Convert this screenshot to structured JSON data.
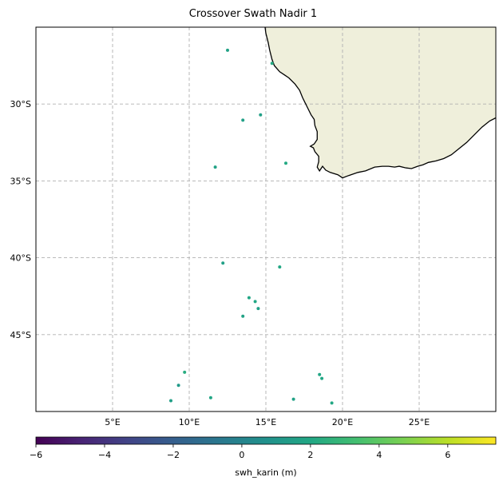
{
  "title": "Crossover Swath Nadir 1",
  "map": {
    "lon_range": [
      0,
      30
    ],
    "lat_range": [
      -50,
      -25
    ],
    "gridlines": true,
    "lon_ticks": [
      {
        "value": 5,
        "label": "5°E"
      },
      {
        "value": 10,
        "label": "10°E"
      },
      {
        "value": 15,
        "label": "15°E"
      },
      {
        "value": 20,
        "label": "20°E"
      },
      {
        "value": 25,
        "label": "25°E"
      }
    ],
    "lat_ticks": [
      {
        "value": -30,
        "label": "30°S"
      },
      {
        "value": -35,
        "label": "35°S"
      },
      {
        "value": -40,
        "label": "40°S"
      },
      {
        "value": -45,
        "label": "45°S"
      }
    ],
    "land_color": "#efefdb",
    "coast_color": "#000000",
    "grid_color": "#b0b0b0"
  },
  "coastline_lonlat": [
    [
      14.95,
      -25.0
    ],
    [
      15.0,
      -25.4
    ],
    [
      15.15,
      -26.0
    ],
    [
      15.25,
      -26.5
    ],
    [
      15.4,
      -27.1
    ],
    [
      15.55,
      -27.5
    ],
    [
      15.9,
      -27.9
    ],
    [
      16.2,
      -28.1
    ],
    [
      16.5,
      -28.3
    ],
    [
      16.9,
      -28.7
    ],
    [
      17.2,
      -29.1
    ],
    [
      17.4,
      -29.6
    ],
    [
      17.7,
      -30.2
    ],
    [
      17.95,
      -30.7
    ],
    [
      18.15,
      -31.0
    ],
    [
      18.2,
      -31.4
    ],
    [
      18.35,
      -31.8
    ],
    [
      18.35,
      -32.3
    ],
    [
      18.15,
      -32.6
    ],
    [
      17.9,
      -32.75
    ],
    [
      18.1,
      -32.85
    ],
    [
      18.2,
      -33.1
    ],
    [
      18.45,
      -33.4
    ],
    [
      18.45,
      -33.75
    ],
    [
      18.35,
      -34.1
    ],
    [
      18.5,
      -34.35
    ],
    [
      18.7,
      -34.05
    ],
    [
      18.9,
      -34.3
    ],
    [
      19.2,
      -34.45
    ],
    [
      19.7,
      -34.6
    ],
    [
      20.0,
      -34.8
    ],
    [
      20.4,
      -34.65
    ],
    [
      21.0,
      -34.45
    ],
    [
      21.5,
      -34.35
    ],
    [
      22.1,
      -34.1
    ],
    [
      22.6,
      -34.05
    ],
    [
      23.0,
      -34.05
    ],
    [
      23.4,
      -34.1
    ],
    [
      23.7,
      -34.05
    ],
    [
      24.1,
      -34.15
    ],
    [
      24.5,
      -34.2
    ],
    [
      24.9,
      -34.05
    ],
    [
      25.25,
      -33.95
    ],
    [
      25.6,
      -33.8
    ],
    [
      26.1,
      -33.7
    ],
    [
      26.6,
      -33.55
    ],
    [
      27.1,
      -33.3
    ],
    [
      27.6,
      -32.9
    ],
    [
      28.1,
      -32.5
    ],
    [
      28.6,
      -32.0
    ],
    [
      29.1,
      -31.5
    ],
    [
      29.6,
      -31.1
    ],
    [
      30.0,
      -30.9
    ]
  ],
  "points": [
    {
      "lon": 12.5,
      "lat": -26.5,
      "value": 1.7
    },
    {
      "lon": 15.4,
      "lat": -27.35,
      "value": 2.2
    },
    {
      "lon": 14.65,
      "lat": -30.7,
      "value": 1.6
    },
    {
      "lon": 13.5,
      "lat": -31.05,
      "value": 1.6
    },
    {
      "lon": 16.3,
      "lat": -33.85,
      "value": 2.1
    },
    {
      "lon": 11.7,
      "lat": -34.1,
      "value": 1.7
    },
    {
      "lon": 12.2,
      "lat": -40.35,
      "value": 1.6
    },
    {
      "lon": 15.9,
      "lat": -40.6,
      "value": 2.0
    },
    {
      "lon": 13.9,
      "lat": -42.6,
      "value": 1.9
    },
    {
      "lon": 14.3,
      "lat": -42.85,
      "value": 2.0
    },
    {
      "lon": 14.5,
      "lat": -43.3,
      "value": 1.6
    },
    {
      "lon": 13.5,
      "lat": -43.8,
      "value": 1.7
    },
    {
      "lon": 9.7,
      "lat": -47.45,
      "value": 2.3
    },
    {
      "lon": 9.3,
      "lat": -48.3,
      "value": 1.2
    },
    {
      "lon": 8.8,
      "lat": -49.3,
      "value": 1.5
    },
    {
      "lon": 11.4,
      "lat": -49.1,
      "value": 1.9
    },
    {
      "lon": 16.8,
      "lat": -49.2,
      "value": 1.7
    },
    {
      "lon": 18.5,
      "lat": -47.6,
      "value": 1.9
    },
    {
      "lon": 18.65,
      "lat": -47.85,
      "value": 1.9
    },
    {
      "lon": 19.3,
      "lat": -49.45,
      "value": 2.0
    }
  ],
  "colorbar": {
    "label": "swh_karin (m)",
    "vmin": -6,
    "vmax": 7.4,
    "colormap": "viridis",
    "ticks": [
      {
        "value": -6,
        "label": "−6"
      },
      {
        "value": -4,
        "label": "−4"
      },
      {
        "value": -2,
        "label": "−2"
      },
      {
        "value": 0,
        "label": "0"
      },
      {
        "value": 2,
        "label": "2"
      },
      {
        "value": 4,
        "label": "4"
      },
      {
        "value": 6,
        "label": "6"
      }
    ]
  }
}
